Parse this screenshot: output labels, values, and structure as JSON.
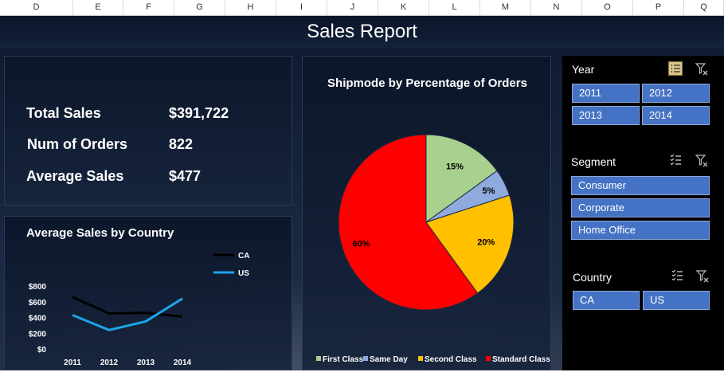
{
  "columns": [
    "D",
    "E",
    "F",
    "G",
    "H",
    "I",
    "J",
    "K",
    "L",
    "M",
    "N",
    "O",
    "P",
    "Q"
  ],
  "title": "Sales Report",
  "kpis": [
    {
      "label": "Total Sales",
      "value": "$391,722"
    },
    {
      "label": "Num of Orders",
      "value": "822"
    },
    {
      "label": "Average Sales",
      "value": "$477"
    }
  ],
  "line_chart": {
    "title": "Average Sales by Country",
    "legend": [
      "CA",
      "US"
    ],
    "colors": {
      "CA": "#000000",
      "US": "#1fa3e8"
    }
  },
  "pie_chart": {
    "title": "Shipmode by Percentage of Orders",
    "legend": [
      "First Class",
      "Same Day",
      "Second Class",
      "Standard Class"
    ],
    "colors": [
      "#a9d18e",
      "#8faadc",
      "#ffc000",
      "#ff0000"
    ]
  },
  "chart_data": [
    {
      "type": "line",
      "title": "Average Sales by Country",
      "x": [
        "2011",
        "2012",
        "2013",
        "2014"
      ],
      "series": [
        {
          "name": "CA",
          "values": [
            660,
            450,
            460,
            410
          ]
        },
        {
          "name": "US",
          "values": [
            430,
            240,
            350,
            640
          ]
        }
      ],
      "ylim": [
        0,
        800
      ],
      "yticks": [
        "$0",
        "$200",
        "$400",
        "$600",
        "$800"
      ],
      "legend_position": "top-right"
    },
    {
      "type": "pie",
      "title": "Shipmode by Percentage of Orders",
      "categories": [
        "First Class",
        "Same Day",
        "Second Class",
        "Standard Class"
      ],
      "values": [
        15,
        5,
        20,
        60
      ],
      "labels": [
        "15%",
        "5%",
        "20%",
        "60%"
      ],
      "legend_position": "bottom"
    }
  ],
  "slicers": {
    "year": {
      "title": "Year",
      "items": [
        "2011",
        "2012",
        "2013",
        "2014"
      ]
    },
    "segment": {
      "title": "Segment",
      "items": [
        "Consumer",
        "Corporate",
        "Home Office"
      ]
    },
    "country": {
      "title": "Country",
      "items": [
        "CA",
        "US"
      ]
    }
  },
  "icons": {
    "multi_select": "multi-select-icon",
    "clear_filter": "clear-filter-icon"
  }
}
